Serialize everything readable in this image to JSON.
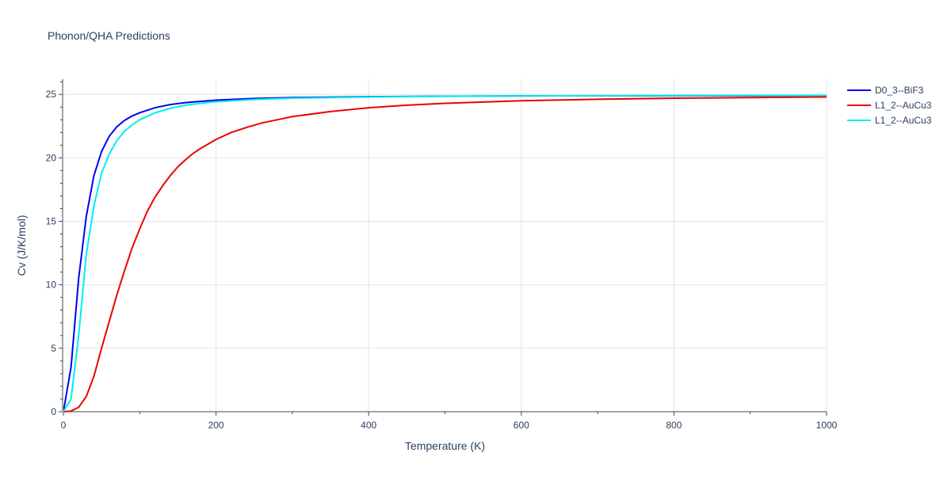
{
  "chart_data": {
    "type": "line",
    "title": "Phonon/QHA Predictions",
    "xlabel": "Temperature (K)",
    "ylabel": "Cv (J/K/mol)",
    "xlim": [
      0,
      1000
    ],
    "ylim": [
      0,
      26.2
    ],
    "x_ticks": [
      0,
      200,
      400,
      600,
      800,
      1000
    ],
    "y_ticks": [
      0,
      5,
      10,
      15,
      20,
      25
    ],
    "grid": true,
    "legend_position": "top-right",
    "series": [
      {
        "name": "D0_3--BiF3",
        "color": "#0000ee",
        "x": [
          0,
          10,
          20,
          30,
          40,
          50,
          60,
          70,
          80,
          90,
          100,
          120,
          140,
          160,
          180,
          200,
          250,
          300,
          400,
          500,
          600,
          700,
          800,
          900,
          1000
        ],
        "y": [
          0,
          3.5,
          10.5,
          15.4,
          18.6,
          20.5,
          21.7,
          22.45,
          22.95,
          23.3,
          23.55,
          23.95,
          24.2,
          24.35,
          24.45,
          24.55,
          24.68,
          24.75,
          24.82,
          24.86,
          24.88,
          24.89,
          24.9,
          24.9,
          24.91
        ]
      },
      {
        "name": "L1_2--AuCu3",
        "color": "#ee0000",
        "x": [
          0,
          10,
          20,
          30,
          40,
          50,
          60,
          70,
          80,
          90,
          100,
          110,
          120,
          130,
          140,
          150,
          160,
          170,
          180,
          200,
          220,
          240,
          260,
          280,
          300,
          350,
          400,
          450,
          500,
          550,
          600,
          700,
          800,
          900,
          1000
        ],
        "y": [
          0,
          0.05,
          0.35,
          1.2,
          2.8,
          5.0,
          7.1,
          9.2,
          11.1,
          12.9,
          14.4,
          15.8,
          16.9,
          17.8,
          18.6,
          19.3,
          19.85,
          20.35,
          20.75,
          21.45,
          22.0,
          22.4,
          22.75,
          23.0,
          23.25,
          23.65,
          23.95,
          24.15,
          24.3,
          24.4,
          24.5,
          24.62,
          24.7,
          24.75,
          24.8
        ]
      },
      {
        "name": "L1_2--AuCu3",
        "color": "#00eeee",
        "x": [
          0,
          10,
          20,
          30,
          40,
          50,
          60,
          70,
          80,
          90,
          100,
          120,
          140,
          160,
          180,
          200,
          250,
          300,
          400,
          500,
          600,
          700,
          800,
          900,
          1000
        ],
        "y": [
          0,
          1.0,
          6.0,
          12.4,
          16.2,
          18.8,
          20.3,
          21.35,
          22.1,
          22.6,
          23.0,
          23.55,
          23.9,
          24.15,
          24.3,
          24.42,
          24.6,
          24.7,
          24.8,
          24.85,
          24.88,
          24.9,
          24.91,
          24.92,
          24.92
        ]
      }
    ]
  }
}
